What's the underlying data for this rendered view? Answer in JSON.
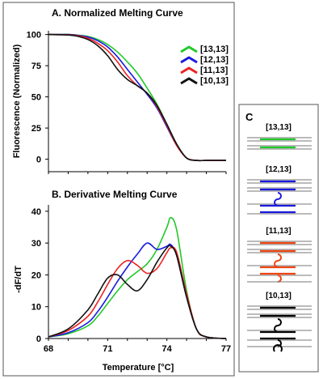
{
  "chart_data": [
    {
      "panel": "A",
      "type": "line",
      "title": "A. Normalized Melting Curve",
      "xlabel": "",
      "ylabel": "Fluorescence (Normalized)",
      "xlim": [
        68,
        77
      ],
      "ylim": [
        -10,
        103
      ],
      "yticks": [
        0,
        25,
        50,
        75,
        100
      ],
      "legend_position": "top-right",
      "series": [
        {
          "name": "[13,13]",
          "color": "#22c92a",
          "x": [
            68,
            69,
            69.5,
            70,
            70.5,
            71,
            71.5,
            72,
            72.5,
            73,
            73.5,
            74,
            74.5,
            75,
            75.5,
            76,
            77
          ],
          "y": [
            100,
            100,
            99.5,
            98.5,
            96,
            92,
            86,
            78,
            69,
            57,
            44,
            28,
            12,
            1,
            -1,
            -1,
            -1
          ]
        },
        {
          "name": "[12,13]",
          "color": "#1a1ae0",
          "x": [
            68,
            69,
            69.5,
            70,
            70.5,
            71,
            71.5,
            72,
            72.5,
            73,
            73.5,
            74,
            74.5,
            75,
            75.5,
            76,
            77
          ],
          "y": [
            100,
            100,
            99.3,
            98,
            95,
            90,
            82,
            72,
            62,
            52,
            41,
            26,
            11,
            1,
            -1,
            -1,
            -1
          ]
        },
        {
          "name": "[11,13]",
          "color": "#ee2222",
          "x": [
            68,
            69,
            69.5,
            70,
            70.5,
            71,
            71.5,
            72,
            72.5,
            73,
            73.5,
            74,
            74.5,
            75,
            75.5,
            76,
            77
          ],
          "y": [
            100,
            99.8,
            99,
            97,
            93,
            87,
            78,
            67,
            59,
            53,
            42,
            27,
            11,
            1,
            -1,
            -1,
            -1
          ]
        },
        {
          "name": "[10,13]",
          "color": "#111111",
          "x": [
            68,
            69,
            69.5,
            70,
            70.5,
            71,
            71.5,
            72,
            72.5,
            73,
            73.5,
            74,
            74.5,
            75,
            75.5,
            76,
            77
          ],
          "y": [
            100,
            99.6,
            98.5,
            96,
            91,
            83,
            72,
            64,
            59,
            53,
            43,
            28,
            12,
            1,
            -1,
            -1,
            -1
          ]
        }
      ]
    },
    {
      "panel": "B",
      "type": "line",
      "title": "B. Derivative Melting Curve",
      "xlabel": "Temperature [°C]",
      "ylabel": "-dF/dT",
      "xlim": [
        68,
        77
      ],
      "ylim": [
        0,
        42
      ],
      "xticks": [
        68,
        71,
        74,
        77
      ],
      "yticks": [
        0,
        10,
        20,
        30,
        40
      ],
      "series": [
        {
          "name": "[13,13]",
          "color": "#22c92a",
          "x": [
            68,
            69,
            70,
            70.5,
            71,
            71.5,
            72,
            72.5,
            73,
            73.5,
            74,
            74.2,
            74.5,
            75,
            75.5,
            76,
            77
          ],
          "y": [
            0.5,
            1.5,
            4,
            7,
            11,
            15,
            18.5,
            21,
            23.5,
            28,
            35,
            38,
            34,
            15,
            3,
            0.5,
            0
          ]
        },
        {
          "name": "[12,13]",
          "color": "#1a1ae0",
          "x": [
            68,
            69,
            70,
            70.5,
            71,
            71.5,
            72,
            72.5,
            73,
            73.5,
            74,
            74.2,
            74.5,
            75,
            75.5,
            76,
            77
          ],
          "y": [
            0.5,
            1.8,
            5,
            8.5,
            13,
            18,
            22.5,
            26.5,
            30,
            28,
            29,
            29.5,
            26,
            13,
            3,
            0.5,
            0
          ]
        },
        {
          "name": "[11,13]",
          "color": "#ee2222",
          "x": [
            68,
            69,
            70,
            70.5,
            71,
            71.5,
            72,
            72.5,
            73,
            73.5,
            74,
            74.2,
            74.5,
            75,
            75.5,
            76,
            77
          ],
          "y": [
            0.5,
            2.5,
            7,
            11.5,
            17,
            22,
            24.5,
            23,
            20.5,
            22,
            27,
            28.5,
            27,
            14,
            3,
            0.5,
            0
          ]
        },
        {
          "name": "[10,13]",
          "color": "#111111",
          "x": [
            68,
            69,
            70,
            70.5,
            71,
            71.5,
            72,
            72.5,
            73,
            73.5,
            74,
            74.2,
            74.5,
            75,
            75.5,
            76,
            77
          ],
          "y": [
            0.5,
            3,
            9,
            14,
            19,
            20,
            17,
            15,
            18.5,
            24,
            28.5,
            29,
            26,
            13,
            3,
            0.5,
            0
          ]
        }
      ]
    }
  ],
  "panel_c": {
    "title": "C",
    "items": [
      {
        "label": "[13,13]",
        "color": "#22c92a"
      },
      {
        "label": "[12,13]",
        "color": "#1a1ae0"
      },
      {
        "label": "[11,13]",
        "color": "#ee4411"
      },
      {
        "label": "[10,13]",
        "color": "#000000"
      }
    ]
  }
}
